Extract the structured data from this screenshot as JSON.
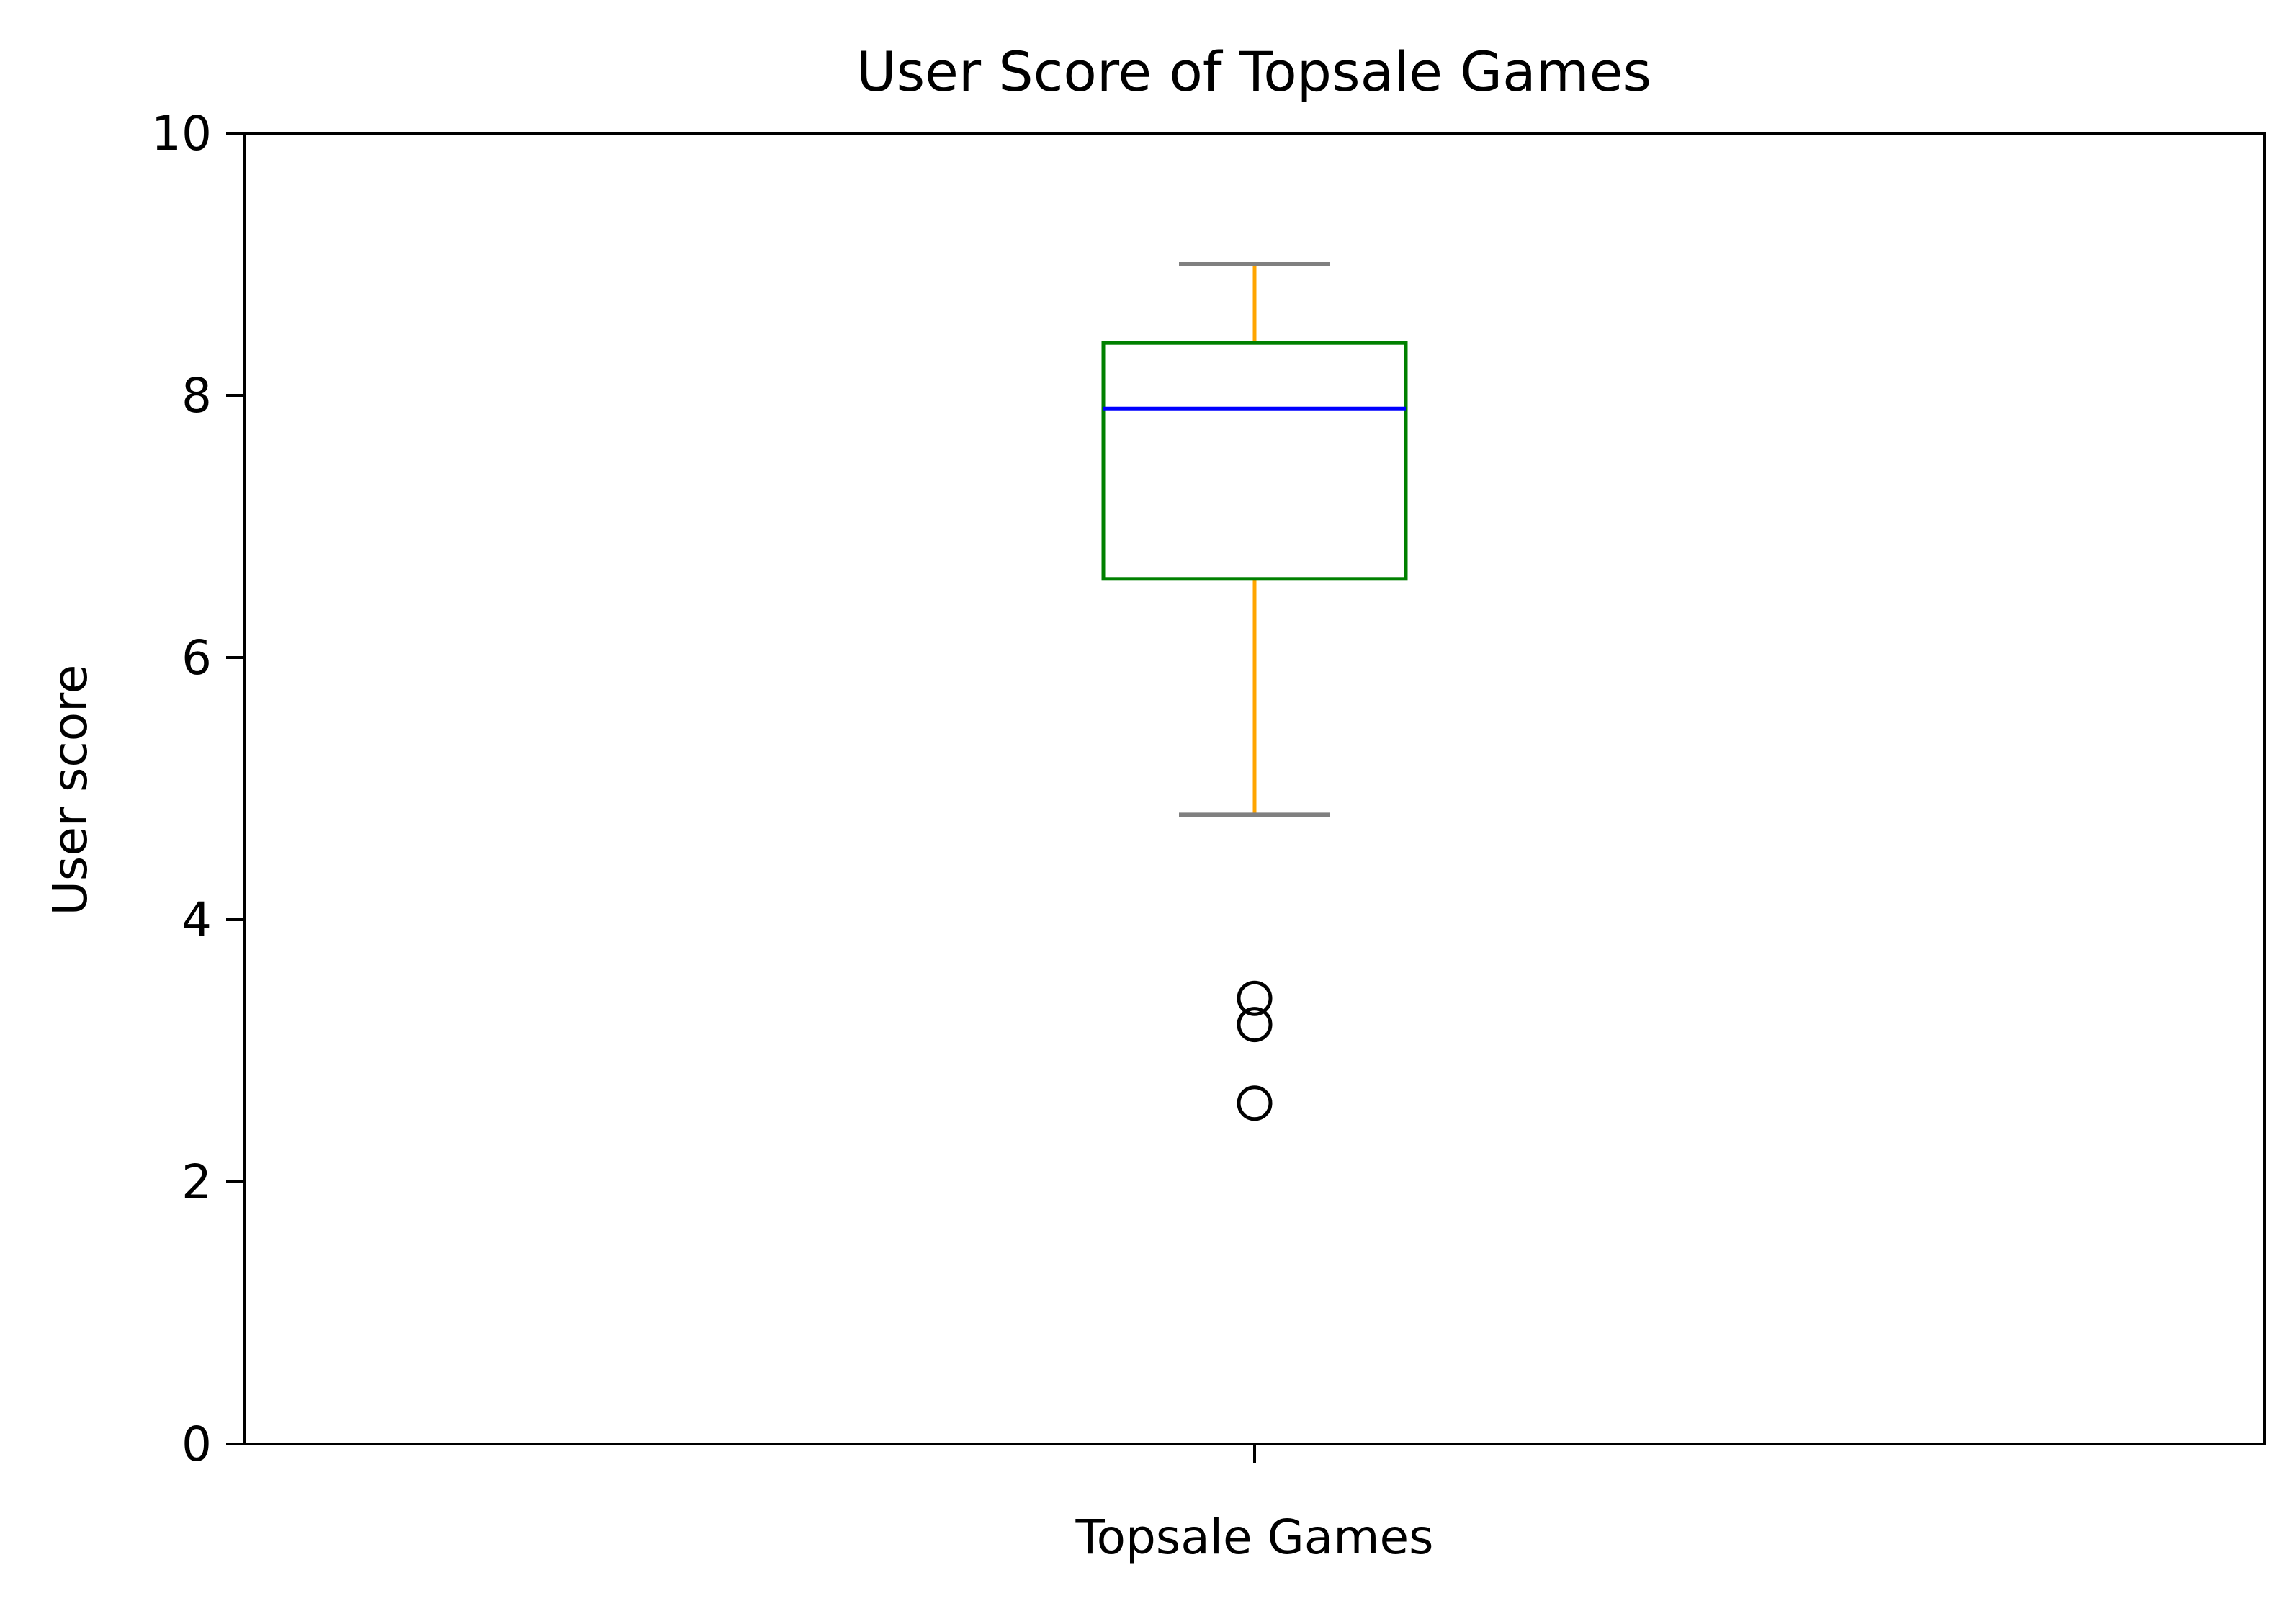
{
  "chart_data": {
    "type": "box",
    "title": "User Score of Topsale Games",
    "xlabel": "",
    "ylabel": "User score",
    "ylim": [
      0,
      10
    ],
    "yticks": [
      "0",
      "2",
      "4",
      "6",
      "8",
      "10"
    ],
    "categories": [
      "Topsale Games"
    ],
    "grid": false,
    "legend": "none",
    "boxes": [
      {
        "category": "Topsale Games",
        "whisker_low": 4.8,
        "q1": 6.6,
        "median": 7.9,
        "q3": 8.4,
        "whisker_high": 9.0,
        "outliers": [
          3.4,
          3.2,
          2.6
        ]
      }
    ],
    "colors": {
      "box": "#008000",
      "median": "#0000ff",
      "whisker": "#ffa500",
      "cap": "#808080",
      "outlier": "#000000",
      "axes": "#000000"
    }
  }
}
